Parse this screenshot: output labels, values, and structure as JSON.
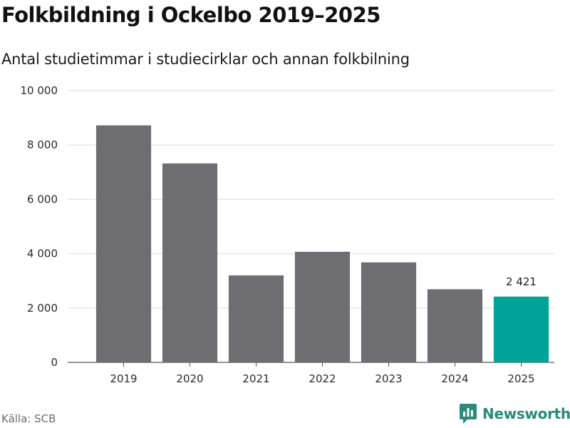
{
  "colors": {
    "bar": "#6e6d72",
    "highlight": "#00a398",
    "grid": "#dddddd",
    "brand": "#2a8a7c"
  },
  "chart_data": {
    "type": "bar",
    "title": "Folkbildning i Ockelbo 2019–2025",
    "subtitle": "Antal studietimmar i studiecirklar och annan folkbilning",
    "categories": [
      "2019",
      "2020",
      "2021",
      "2022",
      "2023",
      "2024",
      "2025"
    ],
    "values": [
      8720,
      7320,
      3200,
      4070,
      3680,
      2690,
      2421
    ],
    "highlight_index": 6,
    "data_labels": [
      {
        "index": 6,
        "text": "2 421"
      }
    ],
    "yticks": [
      0,
      2000,
      4000,
      6000,
      8000,
      10000
    ],
    "ytick_labels": [
      "0",
      "2 000",
      "4 000",
      "6 000",
      "8 000",
      "10 000"
    ],
    "ylim": [
      0,
      10000
    ],
    "xlabel": "",
    "ylabel": "",
    "grid": true
  },
  "footer": {
    "source": "Källa: SCB",
    "brand": "Newsworthy",
    "brand_icon": "newsworthy-logo-icon"
  }
}
